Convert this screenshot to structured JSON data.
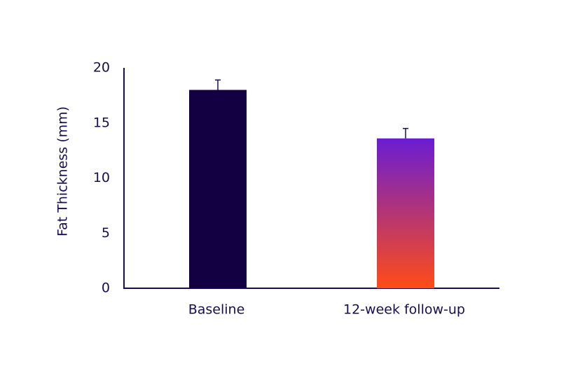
{
  "chart_data": {
    "type": "bar",
    "ylabel": "Fat Thickness (mm)",
    "categories": [
      "Baseline",
      "12-week follow-up"
    ],
    "values": [
      18,
      13.6
    ],
    "errors": [
      0.9,
      0.9
    ],
    "colors": [
      [
        "#130042",
        "#130042"
      ],
      [
        "#6a1dd3",
        "#ff4c16"
      ]
    ],
    "ylim": [
      0,
      20
    ],
    "yticks": [
      0,
      5,
      10,
      15,
      20
    ],
    "grid": false
  }
}
